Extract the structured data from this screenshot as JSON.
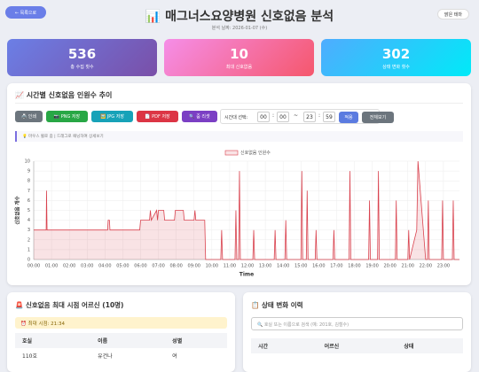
{
  "header": {
    "back": "← 목록으로",
    "title": "📊 매그너스요양병원 신호없음 분석",
    "subtitle": "분석 날짜: 2026-01-07 (수)",
    "theme": "밝은 테마"
  },
  "stats": [
    {
      "value": 536,
      "label": "총 수집 횟수"
    },
    {
      "value": 10,
      "label": "최대 신호없음"
    },
    {
      "value": 302,
      "label": "상태 변화 횟수"
    }
  ],
  "chart_panel": {
    "title": "📈 시간별 신호없음 인원수 추이",
    "buttons": [
      "🖨️ 인쇄",
      "📷 PNG 저장",
      "🖼️ JPG 저장",
      "📄 PDF 저장",
      "🔍 줌 리셋"
    ],
    "range_label": "시간대 선택:",
    "start_h": "00",
    "colon": ":",
    "start_m": "00",
    "sep": "~",
    "end_h": "23",
    "end_m": "59",
    "apply": "적용",
    "all": "전체보기",
    "hint": "💡 마우스 휠로 줌 | 드래그로 패닝하여 상세보기"
  },
  "chart_data": {
    "type": "line",
    "y_label": "신호없음 개수",
    "x_label": "Time",
    "grid": true,
    "x": [
      0,
      0.7,
      0.72,
      0.75,
      0.8,
      0.82,
      4.15,
      4.18,
      4.25,
      4.28,
      5.95,
      6.0,
      6.5,
      6.55,
      6.6,
      6.9,
      6.95,
      7.0,
      7.3,
      7.35,
      7.9,
      7.95,
      8.4,
      8.45,
      9.0,
      9.05,
      9.1,
      9.6,
      9.65,
      10.5,
      10.55,
      10.6,
      11.3,
      11.35,
      11.4,
      11.5,
      11.55,
      11.6,
      12.3,
      12.35,
      12.4,
      13.5,
      13.55,
      13.6,
      14.1,
      14.15,
      14.2,
      15.0,
      15.05,
      15.1,
      15.3,
      15.35,
      15.4,
      15.8,
      15.85,
      15.9,
      16.8,
      16.85,
      16.9,
      17.7,
      17.75,
      17.8,
      18.8,
      18.85,
      18.9,
      19.3,
      19.35,
      19.4,
      20.3,
      20.35,
      20.4,
      21.0,
      21.05,
      21.1,
      21.5,
      21.57,
      22.0,
      22.1,
      22.15,
      22.2,
      22.9,
      22.95,
      23.0,
      23.5,
      23.55,
      23.6,
      23.9
    ],
    "series": [
      {
        "name": "신호없음 인원수",
        "color": "#d9434f",
        "values": [
          3,
          3,
          7,
          3,
          3,
          3,
          3,
          4,
          4,
          3,
          3,
          4,
          4,
          5,
          4,
          5,
          4,
          5,
          5,
          4,
          4,
          5,
          5,
          4,
          4,
          5,
          4,
          4,
          0,
          0,
          3,
          0,
          0,
          5,
          0,
          0,
          9,
          0,
          0,
          3,
          0,
          0,
          3,
          0,
          0,
          4,
          0,
          0,
          9,
          0,
          0,
          7,
          0,
          0,
          3,
          0,
          0,
          3,
          0,
          0,
          9,
          0,
          0,
          6,
          0,
          0,
          9,
          0,
          0,
          6,
          0,
          0,
          3,
          0,
          3,
          10,
          0,
          0,
          6,
          0,
          0,
          6,
          0,
          0,
          6,
          0,
          0
        ]
      }
    ],
    "xlim": [
      0,
      23.9
    ],
    "xticks": [
      {
        "value": 0,
        "label": "00:00"
      },
      {
        "value": 1,
        "label": "01:00"
      },
      {
        "value": 2,
        "label": "02:00"
      },
      {
        "value": 3,
        "label": "03:00"
      },
      {
        "value": 4,
        "label": "04:00"
      },
      {
        "value": 5,
        "label": "05:00"
      },
      {
        "value": 6,
        "label": "06:00"
      },
      {
        "value": 7,
        "label": "07:00"
      },
      {
        "value": 8,
        "label": "08:00"
      },
      {
        "value": 9,
        "label": "09:00"
      },
      {
        "value": 10,
        "label": "10:00"
      },
      {
        "value": 11,
        "label": "11:00"
      },
      {
        "value": 12,
        "label": "12:00"
      },
      {
        "value": 13,
        "label": "13:00"
      },
      {
        "value": 14,
        "label": "14:00"
      },
      {
        "value": 15,
        "label": "15:00"
      },
      {
        "value": 16,
        "label": "16:00"
      },
      {
        "value": 17,
        "label": "17:00"
      },
      {
        "value": 18,
        "label": "18:00"
      },
      {
        "value": 19,
        "label": "19:00"
      },
      {
        "value": 20,
        "label": "20:00"
      },
      {
        "value": 21,
        "label": "21:00"
      },
      {
        "value": 22,
        "label": "22:00"
      },
      {
        "value": 23,
        "label": "23:00"
      }
    ],
    "ylim": [
      0,
      10
    ],
    "yticks": [
      0,
      1,
      2,
      3,
      4,
      5,
      6,
      7,
      8,
      9,
      10
    ]
  },
  "max_panel": {
    "title": "🚨 신호없음 최대 시점 어르신 (10명)",
    "time": "⏰ 최대 시점: 21:34",
    "headers": [
      "호실",
      "이름",
      "성별"
    ],
    "rows": [
      [
        "110호",
        "유건나",
        "여"
      ]
    ]
  },
  "history_panel": {
    "title": "📋 상태 변화 이력",
    "search": "🔍 호실 또는 이름으로 검색 (예: 201호, 김철수)",
    "headers": [
      "시간",
      "어르신",
      "상태"
    ]
  }
}
